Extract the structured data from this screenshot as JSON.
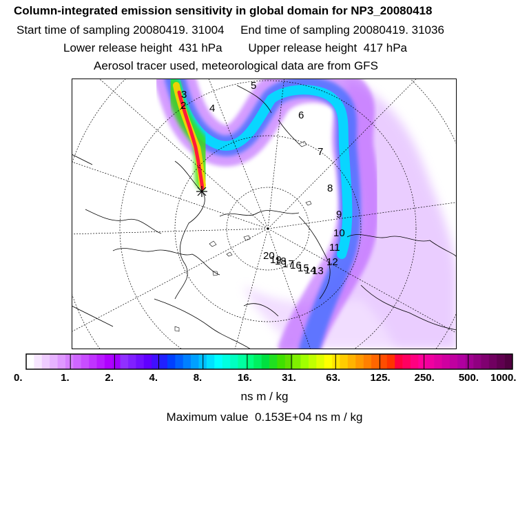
{
  "header": {
    "title": "Column-integrated emission sensitivity in global domain for NP3_20080418",
    "line2": "Start time of sampling 20080419. 31004     End time of sampling 20080419. 31036",
    "line3": "Lower release height  431 hPa        Upper release height  417 hPa",
    "line4": "Aerosol tracer used, meteorological data are from GFS"
  },
  "map": {
    "projection": "north-polar-stereographic",
    "trajectory_labels": [
      "3",
      "2",
      "4",
      "5",
      "6",
      "7",
      "8",
      "9",
      "10",
      "11",
      "12",
      "13",
      "14",
      "15",
      "16",
      "17",
      "18",
      "19",
      "20"
    ],
    "release_marker": "star-icon"
  },
  "colorbar": {
    "tick_labels": [
      "0.",
      "1.",
      "2.",
      "4.",
      "8.",
      "16.",
      "31.",
      "63.",
      "125.",
      "250.",
      "500.",
      "1000."
    ],
    "colors": [
      "#ffffff",
      "#f7e6ff",
      "#efccff",
      "#e7b3ff",
      "#df99ff",
      "#d780ff",
      "#cf66ff",
      "#c84dff",
      "#c033ff",
      "#b81aff",
      "#b000ff",
      "#a000ff",
      "#9030ff",
      "#8020ff",
      "#7010ff",
      "#6000ff",
      "#4010ff",
      "#2020ff",
      "#0040ff",
      "#0060ff",
      "#0080ff",
      "#00a0ff",
      "#00c0ff",
      "#00e0ff",
      "#00ffff",
      "#00ffe0",
      "#00ffc0",
      "#00ffa0",
      "#00ff80",
      "#00f060",
      "#00e040",
      "#20e020",
      "#40e000",
      "#60e000",
      "#80f000",
      "#a0ff00",
      "#c0ff00",
      "#e0ff00",
      "#ffff00",
      "#ffe600",
      "#ffcc00",
      "#ffb300",
      "#ff9900",
      "#ff8000",
      "#ff6600",
      "#ff4d00",
      "#ff3300",
      "#ff0040",
      "#ff0060",
      "#ff0080",
      "#ff0099",
      "#f000a0",
      "#e000a0",
      "#d000a0",
      "#c000a0",
      "#b000a0",
      "#a00090",
      "#900080",
      "#800070",
      "#700060",
      "#600050",
      "#500040"
    ]
  },
  "units": "ns m / kg",
  "max_value": "Maximum value  0.153E+04 ns m / kg"
}
